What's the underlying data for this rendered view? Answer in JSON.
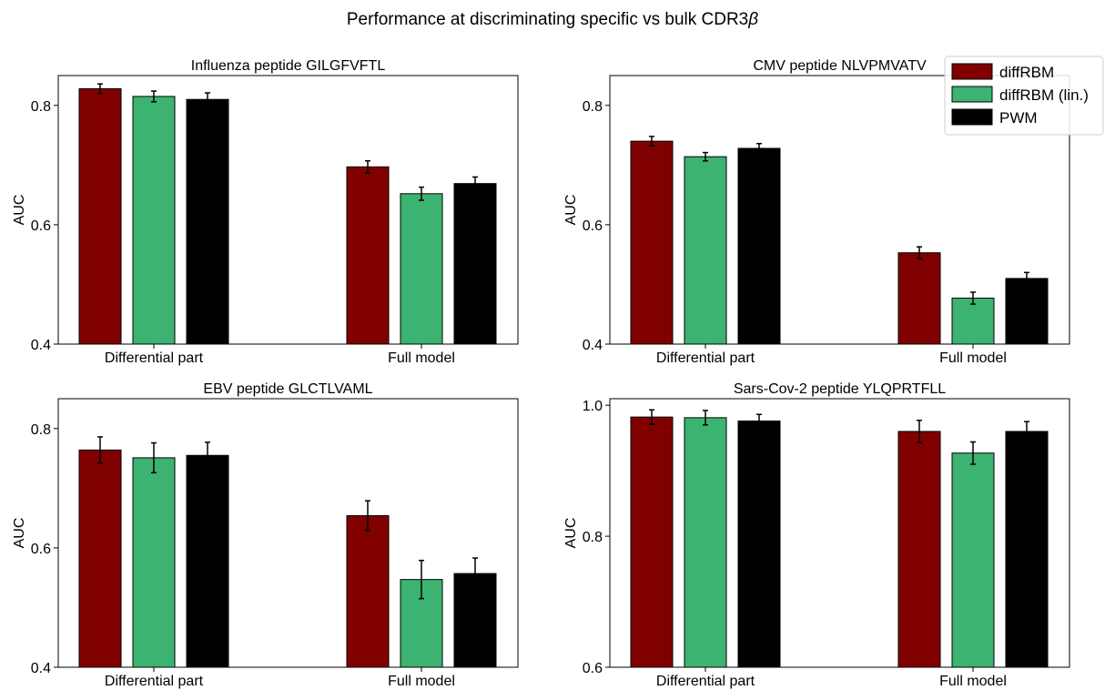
{
  "figure": {
    "title_main": "Performance at discriminating specific vs bulk CDR3",
    "title_symbol": "β"
  },
  "legend": {
    "placement": "top-right",
    "entries": [
      {
        "label": "diffRBM",
        "color": "#800000"
      },
      {
        "label": "diffRBM (lin.)",
        "color": "#3cb371"
      },
      {
        "label": "PWM",
        "color": "#000000"
      }
    ]
  },
  "chart_data": [
    {
      "type": "bar",
      "title": "Influenza peptide GILGFVFTL",
      "ylabel": "AUC",
      "categories": [
        "Differential part",
        "Full model"
      ],
      "ylim": [
        0.4,
        0.85
      ],
      "yticks": [
        "0.4",
        "0.6",
        "0.8"
      ],
      "series": [
        {
          "name": "diffRBM",
          "values": [
            0.828,
            0.697
          ],
          "errors": [
            0.008,
            0.01
          ]
        },
        {
          "name": "diffRBM (lin.)",
          "values": [
            0.815,
            0.652
          ],
          "errors": [
            0.009,
            0.011
          ]
        },
        {
          "name": "PWM",
          "values": [
            0.81,
            0.669
          ],
          "errors": [
            0.011,
            0.011
          ]
        }
      ]
    },
    {
      "type": "bar",
      "title": "CMV peptide NLVPMVATV",
      "ylabel": "AUC",
      "categories": [
        "Differential part",
        "Full model"
      ],
      "ylim": [
        0.4,
        0.85
      ],
      "yticks": [
        "0.4",
        "0.6",
        "0.8"
      ],
      "series": [
        {
          "name": "diffRBM",
          "values": [
            0.74,
            0.553
          ],
          "errors": [
            0.008,
            0.01
          ]
        },
        {
          "name": "diffRBM (lin.)",
          "values": [
            0.714,
            0.477
          ],
          "errors": [
            0.007,
            0.01
          ]
        },
        {
          "name": "PWM",
          "values": [
            0.728,
            0.51
          ],
          "errors": [
            0.008,
            0.01
          ]
        }
      ]
    },
    {
      "type": "bar",
      "title": "EBV peptide GLCTLVAML",
      "ylabel": "AUC",
      "categories": [
        "Differential part",
        "Full model"
      ],
      "ylim": [
        0.4,
        0.85
      ],
      "yticks": [
        "0.4",
        "0.6",
        "0.8"
      ],
      "series": [
        {
          "name": "diffRBM",
          "values": [
            0.764,
            0.654
          ],
          "errors": [
            0.022,
            0.025
          ]
        },
        {
          "name": "diffRBM (lin.)",
          "values": [
            0.751,
            0.547
          ],
          "errors": [
            0.025,
            0.032
          ]
        },
        {
          "name": "PWM",
          "values": [
            0.755,
            0.557
          ],
          "errors": [
            0.022,
            0.026
          ]
        }
      ]
    },
    {
      "type": "bar",
      "title": "Sars-Cov-2 peptide YLQPRTFLL",
      "ylabel": "AUC",
      "categories": [
        "Differential part",
        "Full model"
      ],
      "ylim": [
        0.6,
        1.01
      ],
      "yticks": [
        "0.6",
        "0.8",
        "1.0"
      ],
      "series": [
        {
          "name": "diffRBM",
          "values": [
            0.982,
            0.96
          ],
          "errors": [
            0.011,
            0.017
          ]
        },
        {
          "name": "diffRBM (lin.)",
          "values": [
            0.981,
            0.927
          ],
          "errors": [
            0.011,
            0.017
          ]
        },
        {
          "name": "PWM",
          "values": [
            0.976,
            0.96
          ],
          "errors": [
            0.01,
            0.015
          ]
        }
      ]
    }
  ]
}
